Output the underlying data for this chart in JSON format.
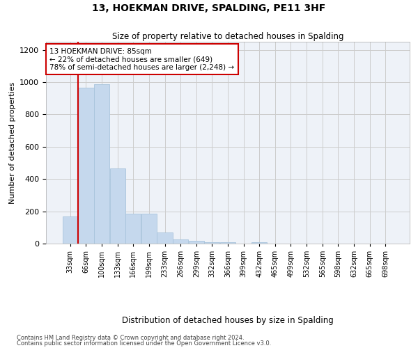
{
  "title": "13, HOEKMAN DRIVE, SPALDING, PE11 3HF",
  "subtitle": "Size of property relative to detached houses in Spalding",
  "xlabel": "Distribution of detached houses by size in Spalding",
  "ylabel": "Number of detached properties",
  "bar_color": "#c5d8ed",
  "bar_edge_color": "#a8c4dc",
  "grid_color": "#cccccc",
  "bg_color": "#eef2f8",
  "red_line_color": "#cc0000",
  "annotation_box_color": "#cc0000",
  "bins": [
    "33sqm",
    "66sqm",
    "100sqm",
    "133sqm",
    "166sqm",
    "199sqm",
    "233sqm",
    "266sqm",
    "299sqm",
    "332sqm",
    "366sqm",
    "399sqm",
    "432sqm",
    "465sqm",
    "499sqm",
    "532sqm",
    "565sqm",
    "598sqm",
    "632sqm",
    "665sqm",
    "698sqm"
  ],
  "values": [
    170,
    965,
    985,
    465,
    185,
    185,
    70,
    28,
    18,
    10,
    10,
    0,
    10,
    0,
    0,
    0,
    0,
    0,
    0,
    0,
    0
  ],
  "annotation_title": "13 HOEKMAN DRIVE: 85sqm",
  "annotation_line1": "← 22% of detached houses are smaller (649)",
  "annotation_line2": "78% of semi-detached houses are larger (2,248) →",
  "red_line_x": 1.5,
  "ylim": [
    0,
    1250
  ],
  "yticks": [
    0,
    200,
    400,
    600,
    800,
    1000,
    1200
  ],
  "footnote1": "Contains HM Land Registry data © Crown copyright and database right 2024.",
  "footnote2": "Contains public sector information licensed under the Open Government Licence v3.0."
}
